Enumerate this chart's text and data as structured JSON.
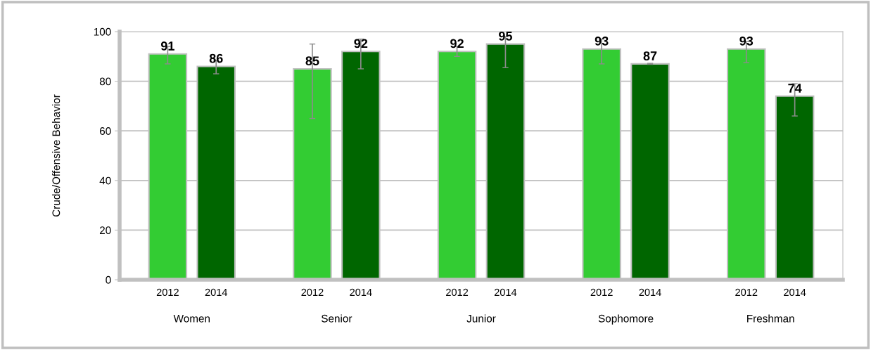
{
  "chart_data": {
    "type": "bar",
    "ylabel": "Crude/Offensive Behavior",
    "categories": [
      "Women",
      "Senior",
      "Junior",
      "Sophomore",
      "Freshman"
    ],
    "series": [
      {
        "name": "2012",
        "color": "#33cc33",
        "values": [
          91,
          85,
          92,
          93,
          93
        ],
        "errors": [
          [
            87,
            94
          ],
          [
            65,
            95
          ],
          [
            90,
            94
          ],
          [
            87,
            97
          ],
          [
            87.5,
            96
          ]
        ]
      },
      {
        "name": "2014",
        "color": "#006600",
        "values": [
          86,
          92,
          95,
          87,
          74
        ],
        "errors": [
          [
            83,
            88.5
          ],
          [
            85,
            97
          ],
          [
            85.5,
            98
          ],
          [
            86.8,
            87.2
          ],
          [
            66,
            79
          ]
        ]
      }
    ],
    "ylim": [
      0,
      100
    ],
    "yticks": [
      0,
      20,
      40,
      60,
      80,
      100
    ],
    "grid": "y",
    "data_labels": true,
    "legend": false
  }
}
